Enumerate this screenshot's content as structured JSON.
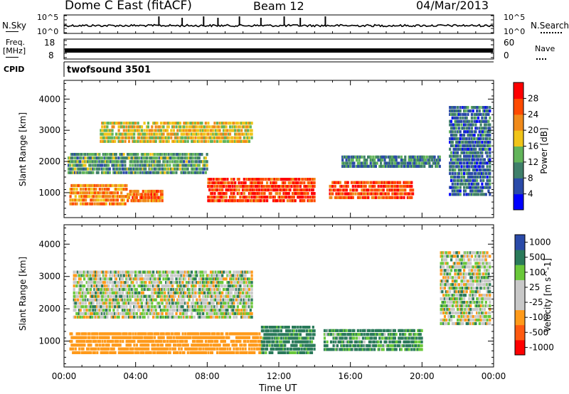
{
  "header": {
    "title": "Dome C East (fitACF)",
    "beam": "Beam 12",
    "date": "04/Mar/2013"
  },
  "noise_panel": {
    "left_label": "N.Sky",
    "right_label": "N.Search",
    "left_ticks": [
      "10^5",
      "10^0"
    ],
    "right_ticks": [
      "10^5",
      "10^0"
    ]
  },
  "freq_panel": {
    "left_label_line1": "Freq.",
    "left_label_line2": "[MHz]",
    "right_label": "Nave",
    "left_ticks": [
      "18",
      "8"
    ],
    "right_ticks": [
      "60",
      "0"
    ]
  },
  "cpid": {
    "label": "CPID",
    "value": "twofsound 3501"
  },
  "time_axis": {
    "label": "Time UT",
    "ticks": [
      "00:00",
      "04:00",
      "08:00",
      "12:00",
      "16:00",
      "20:00",
      "00:00"
    ]
  },
  "colors": {
    "power": [
      "#0000ff",
      "#2a4aa8",
      "#3f7f6a",
      "#62b45a",
      "#f0c419",
      "#f08a1a",
      "#ff4a00",
      "#ff0000"
    ],
    "velocity": [
      "#ff0000",
      "#ff5a10",
      "#ff9a1a",
      "#c8c8c8",
      "#c8c8c8",
      "#6ac83a",
      "#2a7a5a",
      "#2a4aa8"
    ]
  },
  "chart_data": [
    {
      "type": "heatmap",
      "name": "power",
      "xlabel": "Time UT",
      "ylabel": "Slant Range [km]",
      "ylim": [
        200,
        4600
      ],
      "y_ticks": [
        "4000",
        "3000",
        "2000",
        "1000"
      ],
      "colorbar": {
        "label": "Power [dB]",
        "ticks": [
          "28",
          "24",
          "20",
          "16",
          "12",
          "8",
          "4"
        ],
        "range": [
          0,
          32
        ]
      },
      "regions": [
        {
          "t0": 0.3,
          "t1": 3.5,
          "r0": 600,
          "r1": 1300,
          "v": 22
        },
        {
          "t0": 3.5,
          "t1": 5.5,
          "r0": 700,
          "r1": 1100,
          "v": 24
        },
        {
          "t0": 8.0,
          "t1": 14.0,
          "r0": 700,
          "r1": 1500,
          "v": 27
        },
        {
          "t0": 14.8,
          "t1": 19.5,
          "r0": 800,
          "r1": 1400,
          "v": 26
        },
        {
          "t0": 0.2,
          "t1": 8.0,
          "r0": 1600,
          "r1": 2300,
          "v": 12
        },
        {
          "t0": 2.0,
          "t1": 10.5,
          "r0": 2600,
          "r1": 3300,
          "v": 18
        },
        {
          "t0": 15.5,
          "t1": 21.0,
          "r0": 1800,
          "r1": 2200,
          "v": 10
        },
        {
          "t0": 21.5,
          "t1": 23.8,
          "r0": 900,
          "r1": 3800,
          "v": 8
        }
      ]
    },
    {
      "type": "heatmap",
      "name": "velocity",
      "xlabel": "Time UT",
      "ylabel": "Slant Range [km]",
      "ylim": [
        200,
        4600
      ],
      "y_ticks": [
        "4000",
        "3000",
        "2000",
        "1000"
      ],
      "colorbar": {
        "label": "Velocity [m s^-1]",
        "ticks": [
          "1000",
          "500",
          "100",
          "25",
          "-25",
          "-100",
          "-500",
          "-1000"
        ]
      },
      "regions": [
        {
          "t0": 0.3,
          "t1": 11.0,
          "r0": 600,
          "r1": 1300,
          "v": -300
        },
        {
          "t0": 11.0,
          "t1": 14.0,
          "r0": 600,
          "r1": 1500,
          "v": 200
        },
        {
          "t0": 14.5,
          "t1": 20.0,
          "r0": 700,
          "r1": 1400,
          "v": 150
        },
        {
          "t0": 0.5,
          "t1": 10.5,
          "r0": 1700,
          "r1": 3200,
          "v": 0
        },
        {
          "t0": 21.0,
          "t1": 23.8,
          "r0": 1500,
          "r1": 3800,
          "v": 0
        }
      ]
    }
  ]
}
